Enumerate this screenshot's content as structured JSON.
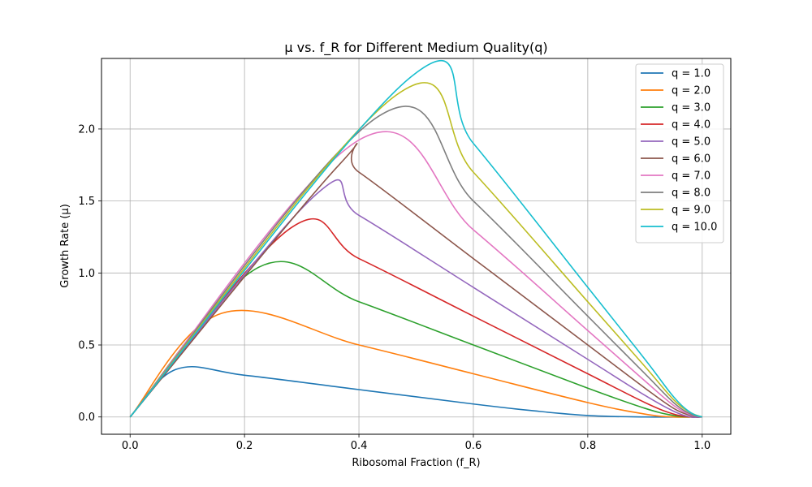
{
  "chart_data": {
    "type": "line",
    "title": "μ vs. f_R for Different Medium Quality(q)",
    "xlabel": "Ribosomal Fraction (f_R)",
    "ylabel": "Growth Rate (μ)",
    "xlim": [
      -0.05,
      1.05
    ],
    "ylim": [
      -0.12,
      2.49
    ],
    "xticks": [
      0.0,
      0.2,
      0.4,
      0.6,
      0.8,
      1.0
    ],
    "xtick_labels": [
      "0.0",
      "0.2",
      "0.4",
      "0.6",
      "0.8",
      "1.0"
    ],
    "yticks": [
      0.0,
      0.5,
      1.0,
      1.5,
      2.0
    ],
    "ytick_labels": [
      "0.0",
      "0.5",
      "1.0",
      "1.5",
      "2.0"
    ],
    "grid": true,
    "legend_position": "top-right",
    "series": [
      {
        "name": "q = 1.0",
        "color": "#1f77b4",
        "x": [
          0.0,
          0.08,
          0.2,
          0.4,
          0.6,
          0.7,
          0.8,
          0.9,
          1.0
        ],
        "y": [
          0.0,
          0.33,
          0.29,
          0.19,
          0.09,
          0.045,
          0.01,
          0.0,
          0.0
        ]
      },
      {
        "name": "q = 2.0",
        "color": "#ff7f0e",
        "x": [
          0.0,
          0.16,
          0.4,
          0.6,
          0.8,
          0.9,
          0.95,
          1.0
        ],
        "y": [
          0.0,
          0.72,
          0.5,
          0.3,
          0.1,
          0.02,
          0.0,
          0.0
        ]
      },
      {
        "name": "q = 3.0",
        "color": "#2ca02c",
        "x": [
          0.0,
          0.225,
          0.4,
          0.6,
          0.8,
          0.9,
          0.95,
          0.98,
          1.0
        ],
        "y": [
          0.0,
          1.04,
          0.8,
          0.5,
          0.2,
          0.06,
          0.01,
          0.0,
          0.0
        ]
      },
      {
        "name": "q = 4.0",
        "color": "#d62728",
        "x": [
          0.0,
          0.28,
          0.4,
          0.6,
          0.8,
          0.9,
          0.95,
          0.98,
          1.0
        ],
        "y": [
          0.0,
          1.31,
          1.1,
          0.7,
          0.3,
          0.1,
          0.02,
          0.0,
          0.0
        ]
      },
      {
        "name": "q = 5.0",
        "color": "#9467bd",
        "x": [
          0.0,
          0.325,
          0.4,
          0.6,
          0.8,
          0.9,
          0.95,
          0.98,
          1.0
        ],
        "y": [
          0.0,
          1.545,
          1.4,
          0.9,
          0.4,
          0.15,
          0.04,
          0.0,
          0.0
        ]
      },
      {
        "name": "q = 6.0",
        "color": "#8c564b",
        "x": [
          0.0,
          0.365,
          0.4,
          0.6,
          0.8,
          0.9,
          0.95,
          0.98,
          1.0
        ],
        "y": [
          0.0,
          1.75,
          1.7,
          1.1,
          0.5,
          0.2,
          0.06,
          0.01,
          0.0
        ]
      },
      {
        "name": "q = 7.0",
        "color": "#e377c2",
        "x": [
          0.0,
          0.403,
          0.6,
          0.8,
          0.9,
          0.95,
          0.98,
          1.0
        ],
        "y": [
          0.0,
          1.93,
          1.3,
          0.6,
          0.25,
          0.08,
          0.015,
          0.0
        ]
      },
      {
        "name": "q = 8.0",
        "color": "#7f7f7f",
        "x": [
          0.0,
          0.435,
          0.6,
          0.8,
          0.9,
          0.95,
          0.98,
          1.0
        ],
        "y": [
          0.0,
          2.09,
          1.5,
          0.7,
          0.3,
          0.1,
          0.02,
          0.0
        ]
      },
      {
        "name": "q = 9.0",
        "color": "#bcbd22",
        "x": [
          0.0,
          0.465,
          0.6,
          0.8,
          0.9,
          0.95,
          0.98,
          1.0
        ],
        "y": [
          0.0,
          2.235,
          1.7,
          0.8,
          0.35,
          0.12,
          0.03,
          0.0
        ]
      },
      {
        "name": "q = 10.0",
        "color": "#17becf",
        "x": [
          0.0,
          0.492,
          0.6,
          0.8,
          0.9,
          0.95,
          0.98,
          1.0
        ],
        "y": [
          0.0,
          2.365,
          1.9,
          0.9,
          0.4,
          0.14,
          0.03,
          0.0
        ]
      }
    ]
  }
}
